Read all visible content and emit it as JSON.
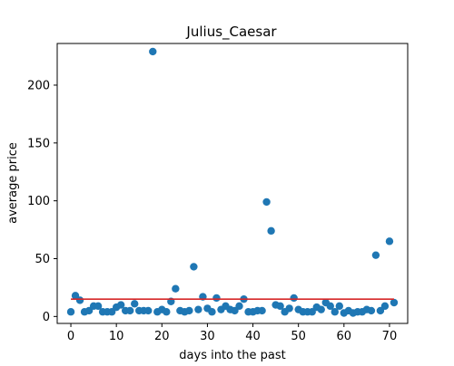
{
  "chart_data": {
    "type": "scatter",
    "title": "Julius_Caesar",
    "xlabel": "days into the past",
    "ylabel": "average price",
    "xlim": [
      -3,
      74
    ],
    "ylim": [
      -6,
      236
    ],
    "xticks": [
      0,
      10,
      20,
      30,
      40,
      50,
      60,
      70
    ],
    "yticks": [
      0,
      50,
      100,
      150,
      200
    ],
    "grid": false,
    "legend": "none",
    "series": [
      {
        "kind": "scatter",
        "color": "#1f77b4",
        "x": [
          0,
          1,
          2,
          3,
          4,
          5,
          6,
          7,
          8,
          9,
          10,
          11,
          12,
          13,
          14,
          15,
          16,
          17,
          18,
          19,
          20,
          21,
          22,
          23,
          24,
          25,
          26,
          27,
          28,
          29,
          30,
          31,
          32,
          33,
          34,
          35,
          36,
          37,
          38,
          39,
          40,
          41,
          42,
          43,
          44,
          45,
          46,
          47,
          48,
          49,
          50,
          51,
          52,
          53,
          54,
          55,
          56,
          57,
          58,
          59,
          60,
          61,
          62,
          63,
          64,
          65,
          66,
          67,
          68,
          69,
          70,
          71
        ],
        "y": [
          4,
          18,
          14,
          4,
          5,
          9,
          9,
          4,
          4,
          4,
          8,
          10,
          5,
          5,
          11,
          5,
          5,
          5,
          229,
          4,
          6,
          4,
          13,
          24,
          5,
          4,
          5,
          43,
          6,
          17,
          7,
          4,
          16,
          6,
          9,
          6,
          5,
          9,
          15,
          4,
          4,
          5,
          5,
          99,
          74,
          10,
          9,
          4,
          7,
          16,
          6,
          4,
          4,
          4,
          8,
          6,
          12,
          9,
          4,
          9,
          3,
          5,
          3,
          4,
          4,
          6,
          5,
          53,
          5,
          9,
          65,
          12
        ]
      },
      {
        "kind": "line",
        "color": "#d62728",
        "x": [
          0,
          71
        ],
        "y": [
          15,
          15
        ]
      }
    ]
  }
}
